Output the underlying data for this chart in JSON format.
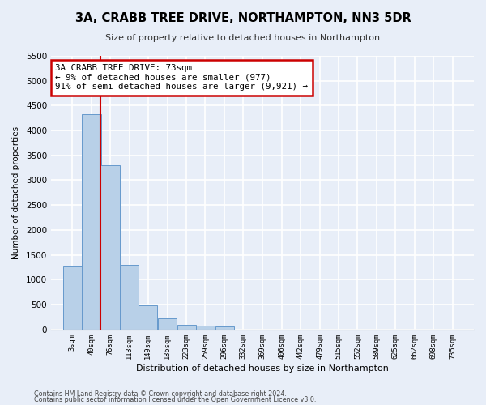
{
  "title": "3A, CRABB TREE DRIVE, NORTHAMPTON, NN3 5DR",
  "subtitle": "Size of property relative to detached houses in Northampton",
  "xlabel": "Distribution of detached houses by size in Northampton",
  "ylabel": "Number of detached properties",
  "bar_color": "#b8d0e8",
  "bar_edge_color": "#6699cc",
  "background_color": "#e8eef8",
  "fig_background_color": "#e8eef8",
  "grid_color": "#ffffff",
  "annotation_text": "3A CRABB TREE DRIVE: 73sqm\n← 9% of detached houses are smaller (977)\n91% of semi-detached houses are larger (9,921) →",
  "annotation_box_color": "#ffffff",
  "annotation_box_edge": "#cc0000",
  "marker_line_color": "#cc0000",
  "categories": [
    "3sqm",
    "40sqm",
    "76sqm",
    "113sqm",
    "149sqm",
    "186sqm",
    "223sqm",
    "259sqm",
    "296sqm",
    "332sqm",
    "369sqm",
    "406sqm",
    "442sqm",
    "479sqm",
    "515sqm",
    "552sqm",
    "589sqm",
    "625sqm",
    "662sqm",
    "698sqm",
    "735sqm"
  ],
  "bin_edges": [
    3,
    40,
    76,
    113,
    149,
    186,
    223,
    259,
    296,
    332,
    369,
    406,
    442,
    479,
    515,
    552,
    589,
    625,
    662,
    698,
    735
  ],
  "values": [
    1270,
    4330,
    3300,
    1290,
    490,
    220,
    100,
    80,
    60,
    0,
    0,
    0,
    0,
    0,
    0,
    0,
    0,
    0,
    0,
    0
  ],
  "ylim": [
    0,
    5500
  ],
  "yticks": [
    0,
    500,
    1000,
    1500,
    2000,
    2500,
    3000,
    3500,
    4000,
    4500,
    5000,
    5500
  ],
  "footer1": "Contains HM Land Registry data © Crown copyright and database right 2024.",
  "footer2": "Contains public sector information licensed under the Open Government Licence v3.0."
}
